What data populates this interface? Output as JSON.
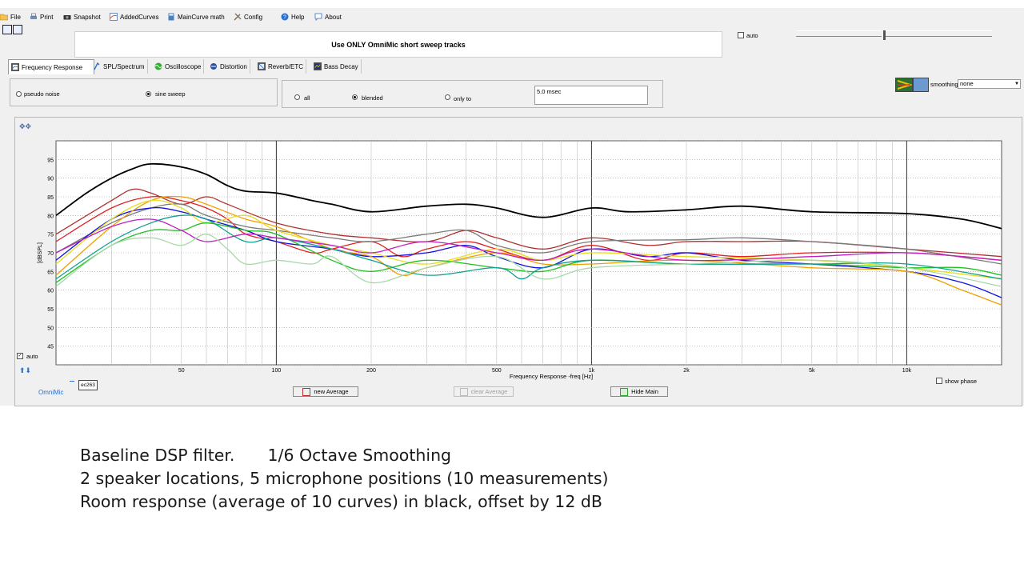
{
  "menu": [
    {
      "label": "File",
      "icon": "folder-icon"
    },
    {
      "label": "Print",
      "icon": "printer-icon"
    },
    {
      "label": "Snapshot",
      "icon": "camera-icon"
    },
    {
      "label": "AddedCurves",
      "icon": "curves-icon"
    },
    {
      "label": "MainCurve math",
      "icon": "calculator-icon"
    },
    {
      "label": "Config",
      "icon": "tools-icon"
    },
    {
      "label": "Help",
      "icon": "help-icon"
    },
    {
      "label": "About",
      "icon": "chat-icon"
    }
  ],
  "banner": "Use ONLY OmniMic short sweep tracks",
  "top_auto_label": "auto",
  "tabs": [
    "Frequency Response",
    "SPL/Spectrum",
    "Oscilloscope",
    "Distortion",
    "Reverb/ETC",
    "Bass Decay"
  ],
  "signal": {
    "options": [
      "pseudo noise",
      "sine sweep"
    ],
    "selected": "sine sweep"
  },
  "window": {
    "options": [
      "all",
      "blended",
      "only to"
    ],
    "selected": "blended",
    "time_value": "5.0 msec"
  },
  "smoothing": {
    "label": "smoothing",
    "value": "none"
  },
  "chart_data": {
    "type": "line",
    "xlabel": "Frequency Response -freq [Hz]",
    "ylabel": "[dBSPL]",
    "x_scale": "log",
    "xlim": [
      20,
      20000
    ],
    "ylim": [
      40,
      100
    ],
    "x_ticks": [
      {
        "v": 50,
        "t": "50"
      },
      {
        "v": 100,
        "t": "100"
      },
      {
        "v": 200,
        "t": "200"
      },
      {
        "v": 500,
        "t": "500"
      },
      {
        "v": 1000,
        "t": "1k"
      },
      {
        "v": 2000,
        "t": "2k"
      },
      {
        "v": 5000,
        "t": "5k"
      },
      {
        "v": 10000,
        "t": "10k"
      }
    ],
    "y_ticks": [
      45,
      50,
      55,
      60,
      65,
      70,
      75,
      80,
      85,
      90,
      95
    ],
    "grid": true,
    "series": [
      {
        "color": "#000000",
        "points": [
          [
            20,
            80
          ],
          [
            25,
            86
          ],
          [
            30,
            90
          ],
          [
            35,
            92.5
          ],
          [
            40,
            93.8
          ],
          [
            50,
            93
          ],
          [
            60,
            91
          ],
          [
            70,
            88
          ],
          [
            80,
            86.5
          ],
          [
            100,
            86
          ],
          [
            130,
            84
          ],
          [
            150,
            83
          ],
          [
            200,
            81
          ],
          [
            300,
            82.5
          ],
          [
            400,
            83
          ],
          [
            500,
            82
          ],
          [
            700,
            79.5
          ],
          [
            1000,
            82
          ],
          [
            1300,
            81
          ],
          [
            2000,
            81.5
          ],
          [
            3000,
            82.5
          ],
          [
            5000,
            81
          ],
          [
            10000,
            80.5
          ],
          [
            15000,
            79
          ],
          [
            20000,
            76.5
          ]
        ]
      },
      {
        "color": "#e32020",
        "points": [
          [
            20,
            73
          ],
          [
            30,
            82
          ],
          [
            40,
            85
          ],
          [
            50,
            84
          ],
          [
            60,
            82
          ],
          [
            70,
            79
          ],
          [
            80,
            75
          ],
          [
            100,
            73
          ],
          [
            130,
            70
          ],
          [
            150,
            71
          ],
          [
            200,
            73
          ],
          [
            250,
            69
          ],
          [
            300,
            71
          ],
          [
            400,
            73
          ],
          [
            500,
            71
          ],
          [
            700,
            68
          ],
          [
            1000,
            72
          ],
          [
            1500,
            68
          ],
          [
            2000,
            70
          ],
          [
            3000,
            69
          ],
          [
            5000,
            70
          ],
          [
            10000,
            70
          ],
          [
            15000,
            69
          ],
          [
            20000,
            68
          ]
        ]
      },
      {
        "color": "#b03030",
        "points": [
          [
            20,
            75
          ],
          [
            30,
            84
          ],
          [
            35,
            87
          ],
          [
            40,
            86
          ],
          [
            50,
            83
          ],
          [
            60,
            85
          ],
          [
            70,
            83
          ],
          [
            100,
            78
          ],
          [
            150,
            75
          ],
          [
            200,
            74
          ],
          [
            300,
            73
          ],
          [
            400,
            76
          ],
          [
            500,
            74
          ],
          [
            700,
            71
          ],
          [
            1000,
            74
          ],
          [
            1500,
            72
          ],
          [
            2000,
            73
          ],
          [
            3000,
            73
          ],
          [
            5000,
            73
          ],
          [
            10000,
            71
          ],
          [
            20000,
            69
          ]
        ]
      },
      {
        "color": "#7a7a7a",
        "points": [
          [
            20,
            70
          ],
          [
            30,
            78
          ],
          [
            40,
            82
          ],
          [
            50,
            83
          ],
          [
            60,
            80
          ],
          [
            80,
            77
          ],
          [
            100,
            76
          ],
          [
            150,
            74
          ],
          [
            200,
            73
          ],
          [
            300,
            75
          ],
          [
            400,
            76
          ],
          [
            500,
            72
          ],
          [
            700,
            70
          ],
          [
            1000,
            73
          ],
          [
            2000,
            73.5
          ],
          [
            3000,
            74
          ],
          [
            5000,
            73
          ],
          [
            10000,
            71
          ],
          [
            20000,
            67
          ]
        ]
      },
      {
        "color": "#1010e0",
        "points": [
          [
            20,
            68
          ],
          [
            30,
            79
          ],
          [
            40,
            82
          ],
          [
            50,
            81
          ],
          [
            60,
            79
          ],
          [
            80,
            76
          ],
          [
            100,
            73
          ],
          [
            150,
            71
          ],
          [
            200,
            69
          ],
          [
            300,
            70
          ],
          [
            400,
            72
          ],
          [
            500,
            69
          ],
          [
            700,
            66
          ],
          [
            1000,
            71
          ],
          [
            1500,
            69
          ],
          [
            2000,
            70
          ],
          [
            3000,
            68
          ],
          [
            5000,
            67
          ],
          [
            10000,
            65
          ],
          [
            15000,
            62
          ],
          [
            20000,
            58
          ]
        ]
      },
      {
        "color": "#f0a000",
        "points": [
          [
            20,
            64
          ],
          [
            30,
            77
          ],
          [
            40,
            84
          ],
          [
            50,
            85
          ],
          [
            60,
            83
          ],
          [
            80,
            79
          ],
          [
            100,
            77
          ],
          [
            150,
            71
          ],
          [
            200,
            69
          ],
          [
            250,
            64
          ],
          [
            300,
            66
          ],
          [
            500,
            70
          ],
          [
            700,
            67
          ],
          [
            1000,
            67
          ],
          [
            2000,
            68
          ],
          [
            5000,
            66
          ],
          [
            10000,
            65
          ],
          [
            15000,
            60
          ],
          [
            20000,
            56
          ]
        ]
      },
      {
        "color": "#e6dd20",
        "points": [
          [
            20,
            67
          ],
          [
            30,
            79
          ],
          [
            40,
            84
          ],
          [
            50,
            82
          ],
          [
            60,
            78
          ],
          [
            80,
            80
          ],
          [
            100,
            76
          ],
          [
            150,
            72
          ],
          [
            200,
            70
          ],
          [
            300,
            67
          ],
          [
            500,
            71
          ],
          [
            700,
            68
          ],
          [
            1000,
            70
          ],
          [
            2000,
            69
          ],
          [
            5000,
            68
          ],
          [
            10000,
            66
          ],
          [
            20000,
            63
          ]
        ]
      },
      {
        "color": "#20c020",
        "points": [
          [
            20,
            62
          ],
          [
            30,
            72
          ],
          [
            40,
            76
          ],
          [
            50,
            76
          ],
          [
            60,
            78
          ],
          [
            80,
            76
          ],
          [
            100,
            75
          ],
          [
            150,
            68
          ],
          [
            200,
            65
          ],
          [
            300,
            68
          ],
          [
            500,
            66
          ],
          [
            700,
            65
          ],
          [
            1000,
            68
          ],
          [
            2000,
            67
          ],
          [
            5000,
            67
          ],
          [
            10000,
            66
          ],
          [
            15000,
            66
          ],
          [
            20000,
            64
          ]
        ]
      },
      {
        "color": "#10a090",
        "points": [
          [
            20,
            63
          ],
          [
            30,
            73
          ],
          [
            40,
            78
          ],
          [
            50,
            80
          ],
          [
            60,
            79
          ],
          [
            80,
            73
          ],
          [
            100,
            74
          ],
          [
            150,
            71
          ],
          [
            200,
            68
          ],
          [
            300,
            64
          ],
          [
            500,
            66
          ],
          [
            600,
            63
          ],
          [
            700,
            66
          ],
          [
            1000,
            68
          ],
          [
            2000,
            67
          ],
          [
            5000,
            67
          ],
          [
            10000,
            67
          ],
          [
            20000,
            63
          ]
        ]
      },
      {
        "color": "#c020c0",
        "points": [
          [
            20,
            70
          ],
          [
            30,
            77
          ],
          [
            40,
            79
          ],
          [
            50,
            76
          ],
          [
            60,
            73
          ],
          [
            80,
            75
          ],
          [
            100,
            74
          ],
          [
            150,
            72
          ],
          [
            200,
            70
          ],
          [
            300,
            73
          ],
          [
            500,
            70
          ],
          [
            700,
            68
          ],
          [
            1000,
            71
          ],
          [
            2000,
            68
          ],
          [
            5000,
            69
          ],
          [
            10000,
            70
          ],
          [
            20000,
            68
          ]
        ]
      },
      {
        "color": "#a8d8a8",
        "points": [
          [
            20,
            61
          ],
          [
            30,
            72
          ],
          [
            40,
            74
          ],
          [
            50,
            72
          ],
          [
            60,
            75
          ],
          [
            70,
            71
          ],
          [
            80,
            67
          ],
          [
            100,
            68
          ],
          [
            130,
            67
          ],
          [
            150,
            69
          ],
          [
            200,
            62
          ],
          [
            300,
            66
          ],
          [
            500,
            69
          ],
          [
            700,
            63
          ],
          [
            1000,
            66
          ],
          [
            2000,
            67
          ],
          [
            5000,
            68
          ],
          [
            10000,
            66
          ],
          [
            20000,
            61
          ]
        ]
      }
    ]
  },
  "y_auto_label": "auto",
  "device": {
    "label": "OmniMic",
    "id": "ec263"
  },
  "buttons": {
    "new_average": "new Average",
    "clear_average": "clear Average",
    "hide_main": "Hide Main"
  },
  "show_phase_label": "show phase",
  "caption": {
    "line1a": "Baseline DSP filter.",
    "line1b": "1/6 Octave Smoothing",
    "line2": "2 speaker locations, 5 microphone positions (10 measurements)",
    "line3": "Room response (average of 10 curves) in black, offset by 12 dB"
  }
}
